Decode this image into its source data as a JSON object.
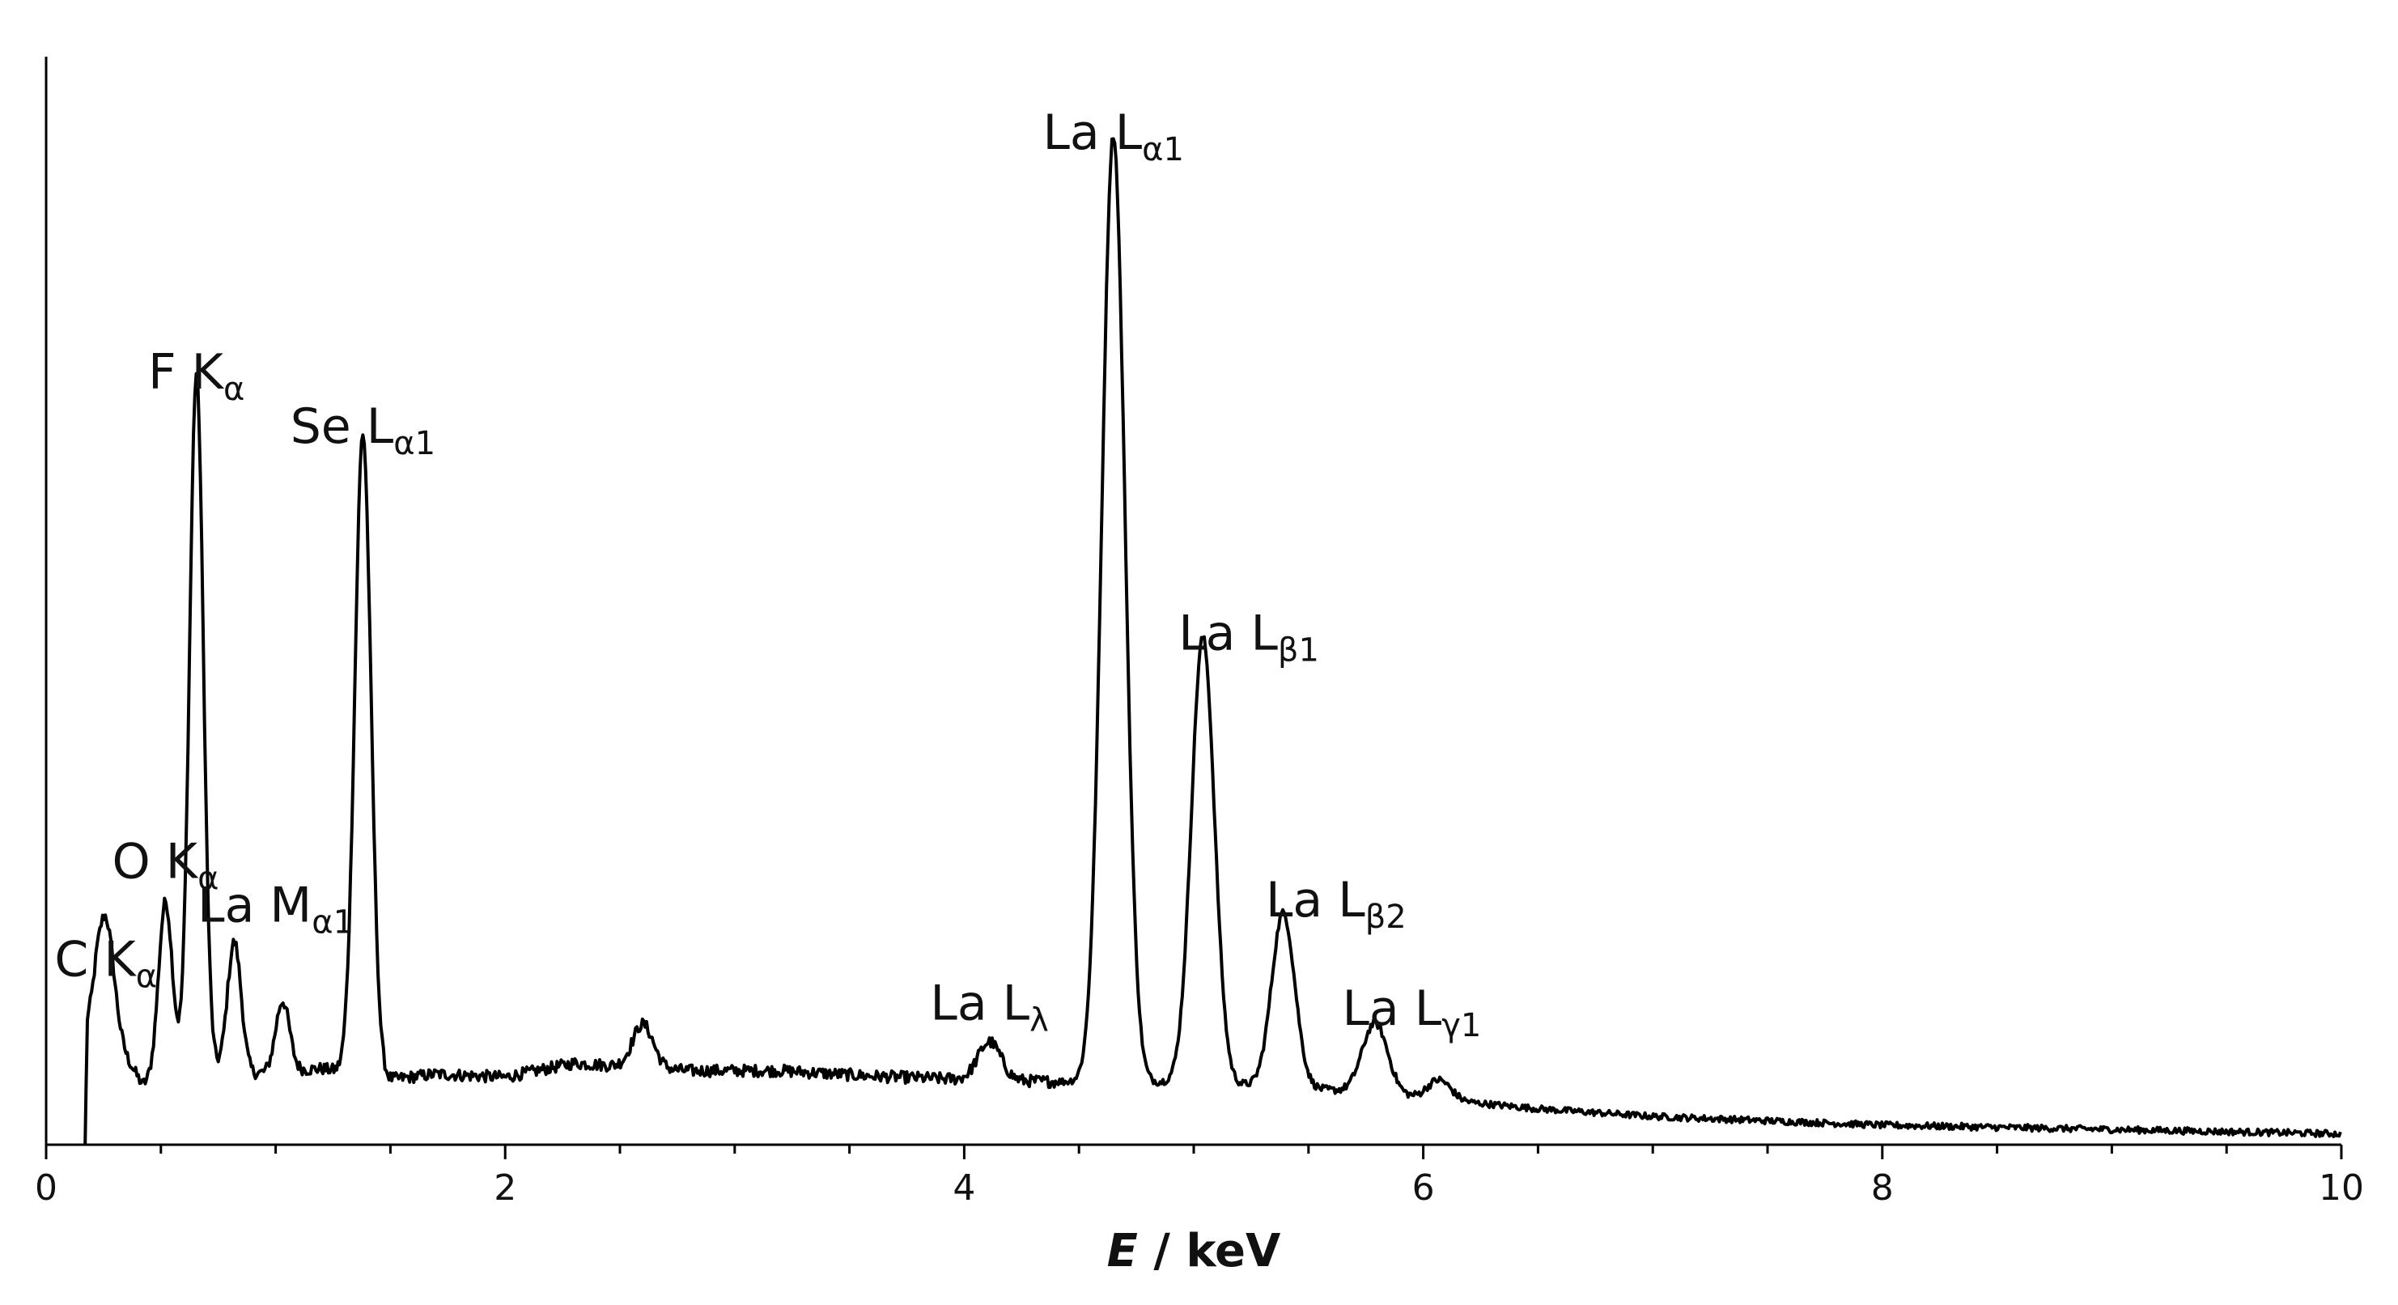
{
  "chart_data": {
    "type": "line",
    "title": "",
    "xlabel_italic": "E",
    "xlabel_rest": " / keV",
    "ylabel": "",
    "xlim": [
      0,
      10
    ],
    "ylim": [
      0,
      100
    ],
    "x_ticks": [
      {
        "value": 0,
        "label": "0"
      },
      {
        "value": 2,
        "label": "2"
      },
      {
        "value": 4,
        "label": "4"
      },
      {
        "value": 6,
        "label": "6"
      },
      {
        "value": 8,
        "label": "8"
      },
      {
        "value": 10,
        "label": "10"
      }
    ],
    "minor_tick_step": 0.5,
    "grid": false,
    "legend": "none",
    "baseline": [
      [
        0.17,
        0
      ],
      [
        0.18,
        11
      ],
      [
        0.22,
        13
      ],
      [
        0.35,
        8
      ],
      [
        0.42,
        5.5
      ],
      [
        0.6,
        7
      ],
      [
        0.9,
        6.5
      ],
      [
        1.2,
        7
      ],
      [
        1.5,
        6
      ],
      [
        1.7,
        6.5
      ],
      [
        2.0,
        6.2
      ],
      [
        2.3,
        7.5
      ],
      [
        2.8,
        6.8
      ],
      [
        3.2,
        6.8
      ],
      [
        3.6,
        6.3
      ],
      [
        4.0,
        6
      ],
      [
        4.4,
        5.8
      ],
      [
        4.6,
        5.8
      ],
      [
        5.0,
        5.7
      ],
      [
        5.5,
        5.2
      ],
      [
        6.0,
        4.3
      ],
      [
        6.5,
        3.3
      ],
      [
        7.0,
        2.6
      ],
      [
        8.0,
        1.8
      ],
      [
        9.0,
        1.4
      ],
      [
        10.0,
        1.0
      ]
    ],
    "peaks": [
      {
        "x": 0.26,
        "height": 9.5,
        "width": 0.035
      },
      {
        "x": 0.52,
        "height": 16,
        "width": 0.03
      },
      {
        "x": 0.655,
        "height": 64,
        "width": 0.03
      },
      {
        "x": 0.82,
        "height": 12,
        "width": 0.03
      },
      {
        "x": 1.03,
        "height": 6.5,
        "width": 0.03
      },
      {
        "x": 1.38,
        "height": 59,
        "width": 0.035
      },
      {
        "x": 2.6,
        "height": 4,
        "width": 0.045
      },
      {
        "x": 4.11,
        "height": 3.5,
        "width": 0.05
      },
      {
        "x": 4.65,
        "height": 87,
        "width": 0.05
      },
      {
        "x": 5.04,
        "height": 41,
        "width": 0.05
      },
      {
        "x": 5.39,
        "height": 16,
        "width": 0.05
      },
      {
        "x": 5.79,
        "height": 6.5,
        "width": 0.055
      },
      {
        "x": 6.07,
        "height": 1.8,
        "width": 0.05
      }
    ],
    "annotations": [
      {
        "main": "C K",
        "sub": "α",
        "x": 0.26,
        "y": 15.5
      },
      {
        "main": "O K",
        "sub": "α",
        "x": 0.52,
        "y": 24.5
      },
      {
        "main": "F K",
        "sub": "α",
        "x": 0.655,
        "y": 69.5
      },
      {
        "main": "La M",
        "sub": "α1",
        "x": 1.0,
        "y": 20.5
      },
      {
        "main": "Se L",
        "sub": "α1",
        "x": 1.38,
        "y": 64.5
      },
      {
        "main": "La L",
        "sub": "λ",
        "x": 4.11,
        "y": 11.5
      },
      {
        "main": "La L",
        "sub": "α1",
        "x": 4.65,
        "y": 91.5
      },
      {
        "main": "La L",
        "sub": "β1",
        "x": 5.24,
        "y": 45.5
      },
      {
        "main": "La L",
        "sub": "β2",
        "x": 5.62,
        "y": 21
      },
      {
        "main": "La L",
        "sub": "γ1",
        "x": 5.95,
        "y": 11
      }
    ]
  }
}
